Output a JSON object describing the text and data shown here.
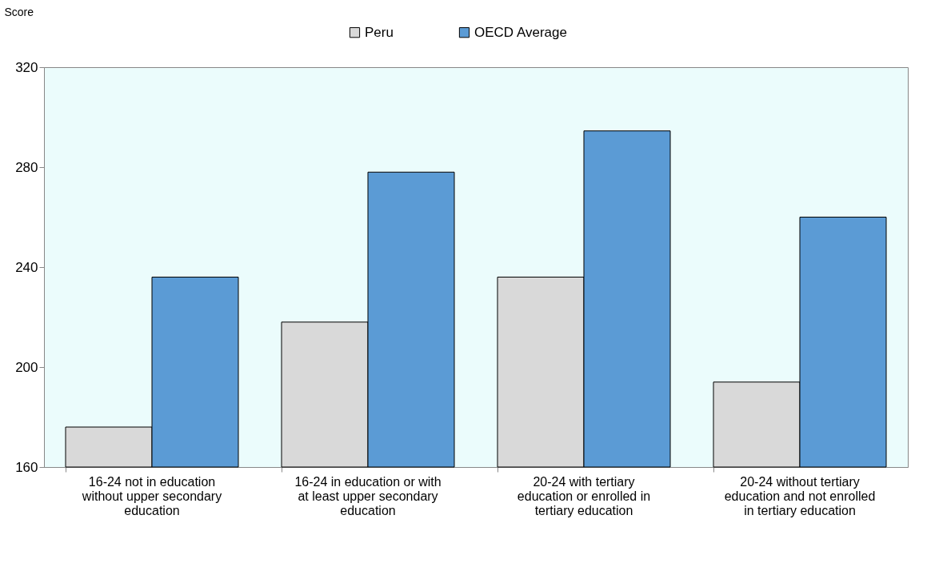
{
  "chart_data": {
    "type": "bar",
    "ylabel": "Score",
    "categories": [
      "16-24 not in education without upper secondary education",
      "16-24 in education or with at least upper secondary education",
      "20-24  with tertiary education or enrolled in tertiary education",
      "20-24 without tertiary education and not enrolled in tertiary education"
    ],
    "series": [
      {
        "name": "Peru",
        "color": "#d9d9d9",
        "values": [
          176,
          218,
          236,
          194
        ]
      },
      {
        "name": "OECD Average",
        "color": "#5b9bd5",
        "values": [
          236,
          278,
          294.5,
          260
        ]
      }
    ],
    "ylim": [
      160,
      320
    ],
    "yticks": [
      160,
      200,
      240,
      280,
      320
    ],
    "grid": false,
    "legend": "top"
  }
}
